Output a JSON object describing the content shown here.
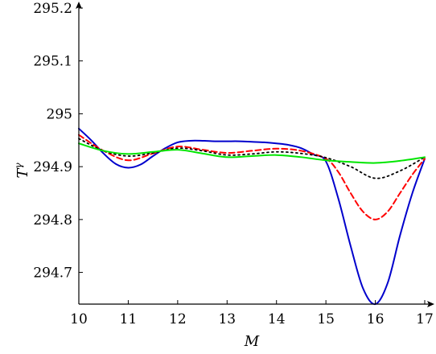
{
  "chart_data": {
    "type": "line",
    "title": "",
    "xlabel": "M",
    "ylabel": "T",
    "ylabel_superscript": "γ",
    "xlim": [
      10,
      17
    ],
    "ylim": [
      294.64,
      295.2
    ],
    "x_ticks": [
      10,
      11,
      12,
      13,
      14,
      15,
      16,
      17
    ],
    "x_tick_labels": [
      "10",
      "11",
      "12",
      "13",
      "14",
      "15",
      "16",
      "17"
    ],
    "y_ticks": [
      294.7,
      294.8,
      294.9,
      295,
      295.1,
      295.2
    ],
    "y_tick_labels": [
      "294.7",
      "294.8",
      "294.9",
      "295",
      "295.1",
      "295.2"
    ],
    "grid": false,
    "legend": "none",
    "series": [
      {
        "color": "#0000cc",
        "dash": "solid",
        "x": [
          10,
          10.25,
          10.5,
          10.75,
          11,
          11.25,
          11.5,
          11.75,
          12,
          12.25,
          12.5,
          12.75,
          13,
          13.25,
          13.5,
          13.75,
          14,
          14.25,
          14.5,
          14.75,
          15,
          15.25,
          15.5,
          15.75,
          16,
          16.25,
          16.5,
          16.75,
          17
        ],
        "y": [
          294.972,
          294.95,
          294.925,
          294.905,
          294.898,
          294.904,
          294.92,
          294.935,
          294.946,
          294.949,
          294.949,
          294.948,
          294.948,
          294.948,
          294.947,
          294.946,
          294.944,
          294.941,
          294.935,
          294.923,
          294.91,
          294.84,
          294.75,
          294.67,
          294.64,
          294.68,
          294.77,
          294.85,
          294.915
        ]
      },
      {
        "color": "#ff0000",
        "dash": "dashed",
        "x": [
          10,
          10.5,
          11,
          11.5,
          12,
          12.5,
          13,
          13.5,
          14,
          14.5,
          15,
          15.25,
          15.5,
          15.75,
          16,
          16.25,
          16.5,
          16.75,
          17
        ],
        "y": [
          294.96,
          294.93,
          294.912,
          294.925,
          294.938,
          294.932,
          294.926,
          294.93,
          294.934,
          294.93,
          294.915,
          294.89,
          294.85,
          294.815,
          294.8,
          294.815,
          294.85,
          294.885,
          294.915
        ]
      },
      {
        "color": "#000000",
        "dash": "dotted",
        "x": [
          10,
          10.5,
          11,
          11.5,
          12,
          12.5,
          13,
          13.5,
          14,
          14.5,
          15,
          15.5,
          16,
          16.5,
          17
        ],
        "y": [
          294.953,
          294.93,
          294.92,
          294.926,
          294.935,
          294.93,
          294.922,
          294.924,
          294.928,
          294.925,
          294.917,
          294.9,
          294.878,
          294.892,
          294.918
        ]
      },
      {
        "color": "#00e600",
        "dash": "solid",
        "x": [
          10,
          10.5,
          11,
          11.5,
          12,
          12.5,
          13,
          13.5,
          14,
          14.5,
          15,
          15.5,
          16,
          16.5,
          17
        ],
        "y": [
          294.944,
          294.93,
          294.924,
          294.928,
          294.932,
          294.925,
          294.918,
          294.92,
          294.922,
          294.918,
          294.912,
          294.909,
          294.907,
          294.911,
          294.918
        ]
      }
    ]
  }
}
